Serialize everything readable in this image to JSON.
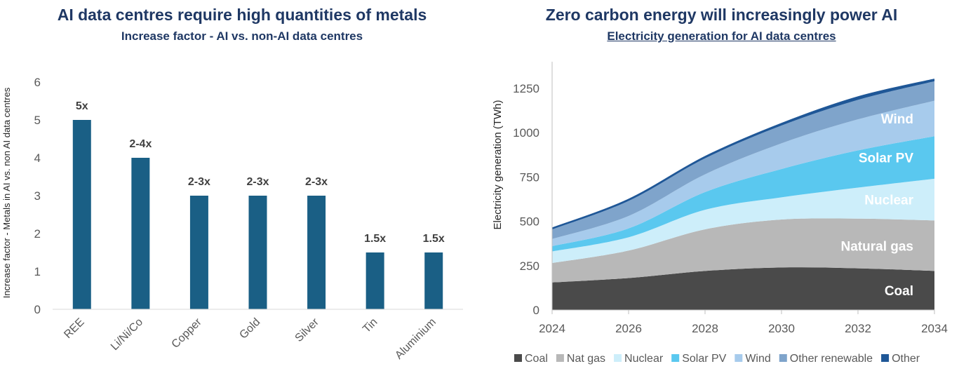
{
  "left": {
    "title": "AI data centres require high quantities of metals",
    "subtitle": "Increase factor - AI vs. non-AI data centres"
  },
  "right": {
    "title": "Zero carbon energy will increasingly power AI",
    "subtitle": "Electricity generation for AI data centres"
  },
  "colors": {
    "title": "#1f3864",
    "bar": "#1a5f85",
    "axis_text": "#595959",
    "coal": "#4a4a4a",
    "nat_gas": "#b8b8b8",
    "nuclear": "#cdeefa",
    "solar_pv": "#5ac8ef",
    "wind": "#a7cbec",
    "other_renewable": "#7fa4cb",
    "other": "#1f5797"
  },
  "chart_data": [
    {
      "type": "bar",
      "title": "AI data centres require high quantities of metals",
      "subtitle": "Increase factor - AI vs. non-AI data centres",
      "ylabel": "Increase factor - Metals in AI vs. non AI data centres",
      "xlabel": "",
      "categories": [
        "REE",
        "Li/Ni/Co",
        "Copper",
        "Gold",
        "Silver",
        "Tin",
        "Aluminium"
      ],
      "values": [
        5,
        4,
        3,
        3,
        3,
        1.5,
        1.5
      ],
      "data_labels": [
        "5x",
        "2-4x",
        "2-3x",
        "2-3x",
        "2-3x",
        "1.5x",
        "1.5x"
      ],
      "ylim": [
        0,
        6
      ],
      "yticks": [
        0,
        1,
        2,
        3,
        4,
        5,
        6
      ],
      "grid": false
    },
    {
      "type": "area",
      "title": "Zero carbon energy will increasingly power AI",
      "subtitle": "Electricity generation for AI data centres",
      "ylabel": "Electricity generation (TWh)",
      "xlabel": "",
      "x": [
        2024,
        2026,
        2028,
        2030,
        2032,
        2034
      ],
      "xticks": [
        "2024",
        "2026",
        "2028",
        "2030",
        "2032",
        "2034"
      ],
      "ylim": [
        0,
        1400
      ],
      "yticks": [
        0,
        250,
        500,
        750,
        1000,
        1250
      ],
      "stacked": true,
      "legend_position": "bottom",
      "grid": false,
      "series": [
        {
          "name": "Coal",
          "values": [
            155,
            180,
            220,
            240,
            235,
            220
          ],
          "inline_label": "Coal",
          "color": "coal"
        },
        {
          "name": "Nat gas",
          "values": [
            110,
            155,
            235,
            270,
            280,
            285
          ],
          "inline_label": "Natural gas",
          "color": "nat_gas"
        },
        {
          "name": "Nuclear",
          "values": [
            65,
            75,
            110,
            125,
            175,
            235
          ],
          "inline_label": "Nuclear",
          "color": "nuclear"
        },
        {
          "name": "Solar PV",
          "values": [
            30,
            50,
            100,
            160,
            210,
            240
          ],
          "inline_label": "Solar PV",
          "color": "solar_pv"
        },
        {
          "name": "Wind",
          "values": [
            40,
            70,
            100,
            145,
            175,
            200
          ],
          "inline_label": "Wind",
          "color": "wind"
        },
        {
          "name": "Other renewable",
          "values": [
            55,
            85,
            90,
            100,
            110,
            110
          ],
          "inline_label": "",
          "color": "other_renewable"
        },
        {
          "name": "Other",
          "values": [
            5,
            7,
            8,
            10,
            15,
            10
          ],
          "inline_label": "",
          "color": "other"
        }
      ]
    }
  ]
}
